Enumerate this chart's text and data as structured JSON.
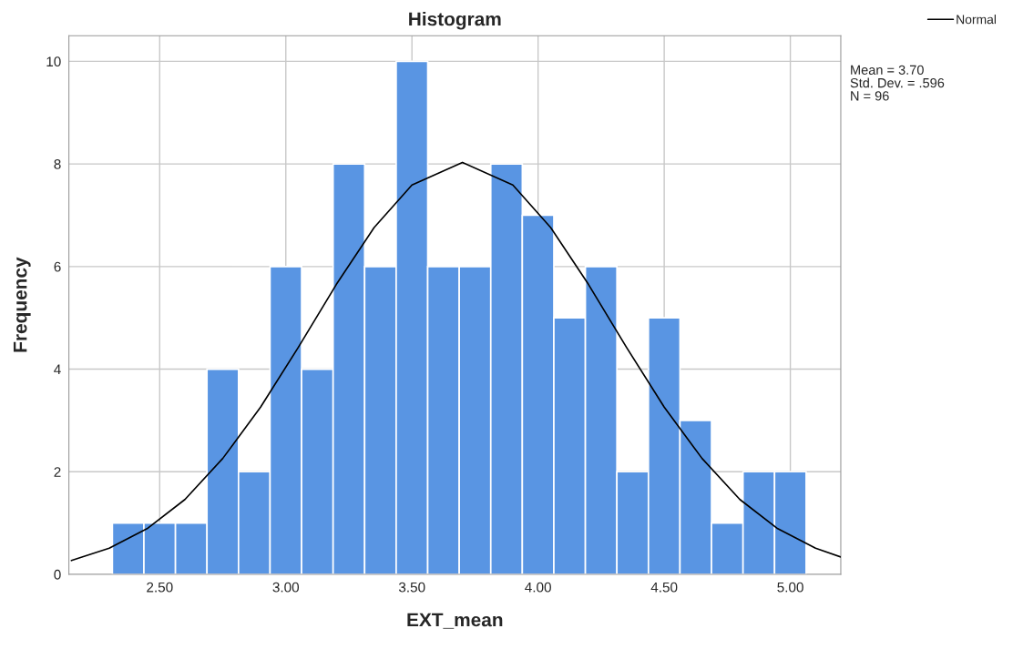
{
  "chart_data": {
    "type": "histogram",
    "title": "Histogram",
    "xlabel": "EXT_mean",
    "ylabel": "Frequency",
    "bins": [
      2.3125,
      2.4375,
      2.5625,
      2.6875,
      2.8125,
      2.9375,
      3.0625,
      3.1875,
      3.3125,
      3.4375,
      3.5625,
      3.6875,
      3.8125,
      3.9375,
      4.0625,
      4.1875,
      4.3125,
      4.4375,
      4.5625,
      4.6875,
      4.8125,
      4.9375,
      5.0625
    ],
    "values": [
      1,
      1,
      1,
      4,
      2,
      6,
      4,
      8,
      6,
      10,
      6,
      6,
      8,
      7,
      5,
      6,
      2,
      5,
      3,
      1,
      2,
      2
    ],
    "color": "#5995e3",
    "series": [
      {
        "type": "line",
        "name": "Normal",
        "color": "#000000",
        "x": [
          2.15,
          2.3,
          2.45,
          2.6,
          2.75,
          2.9,
          3.05,
          3.2,
          3.35,
          3.5,
          3.7,
          3.9,
          4.05,
          4.2,
          4.35,
          4.5,
          4.65,
          4.8,
          4.95,
          5.1,
          5.2
        ],
        "values": [
          0.27,
          0.51,
          0.89,
          1.46,
          2.26,
          3.26,
          4.43,
          5.65,
          6.76,
          7.59,
          8.03,
          7.59,
          6.76,
          5.65,
          4.43,
          3.26,
          2.26,
          1.46,
          0.89,
          0.51,
          0.34
        ]
      }
    ],
    "xlim": [
      2.14,
      5.2
    ],
    "xticks": [
      {
        "value": 2.5,
        "label": "2.50"
      },
      {
        "value": 3.0,
        "label": "3.00"
      },
      {
        "value": 3.5,
        "label": "3.50"
      },
      {
        "value": 4.0,
        "label": "4.00"
      },
      {
        "value": 4.5,
        "label": "4.50"
      },
      {
        "value": 5.0,
        "label": "5.00"
      }
    ],
    "ylim": [
      0,
      10.5
    ],
    "yticks": [
      0,
      2,
      4,
      6,
      8,
      10
    ],
    "grid": true,
    "legend": "top right",
    "annotations": [
      "Mean = 3.70",
      "Std. Dev. = .596",
      "N = 96"
    ]
  }
}
